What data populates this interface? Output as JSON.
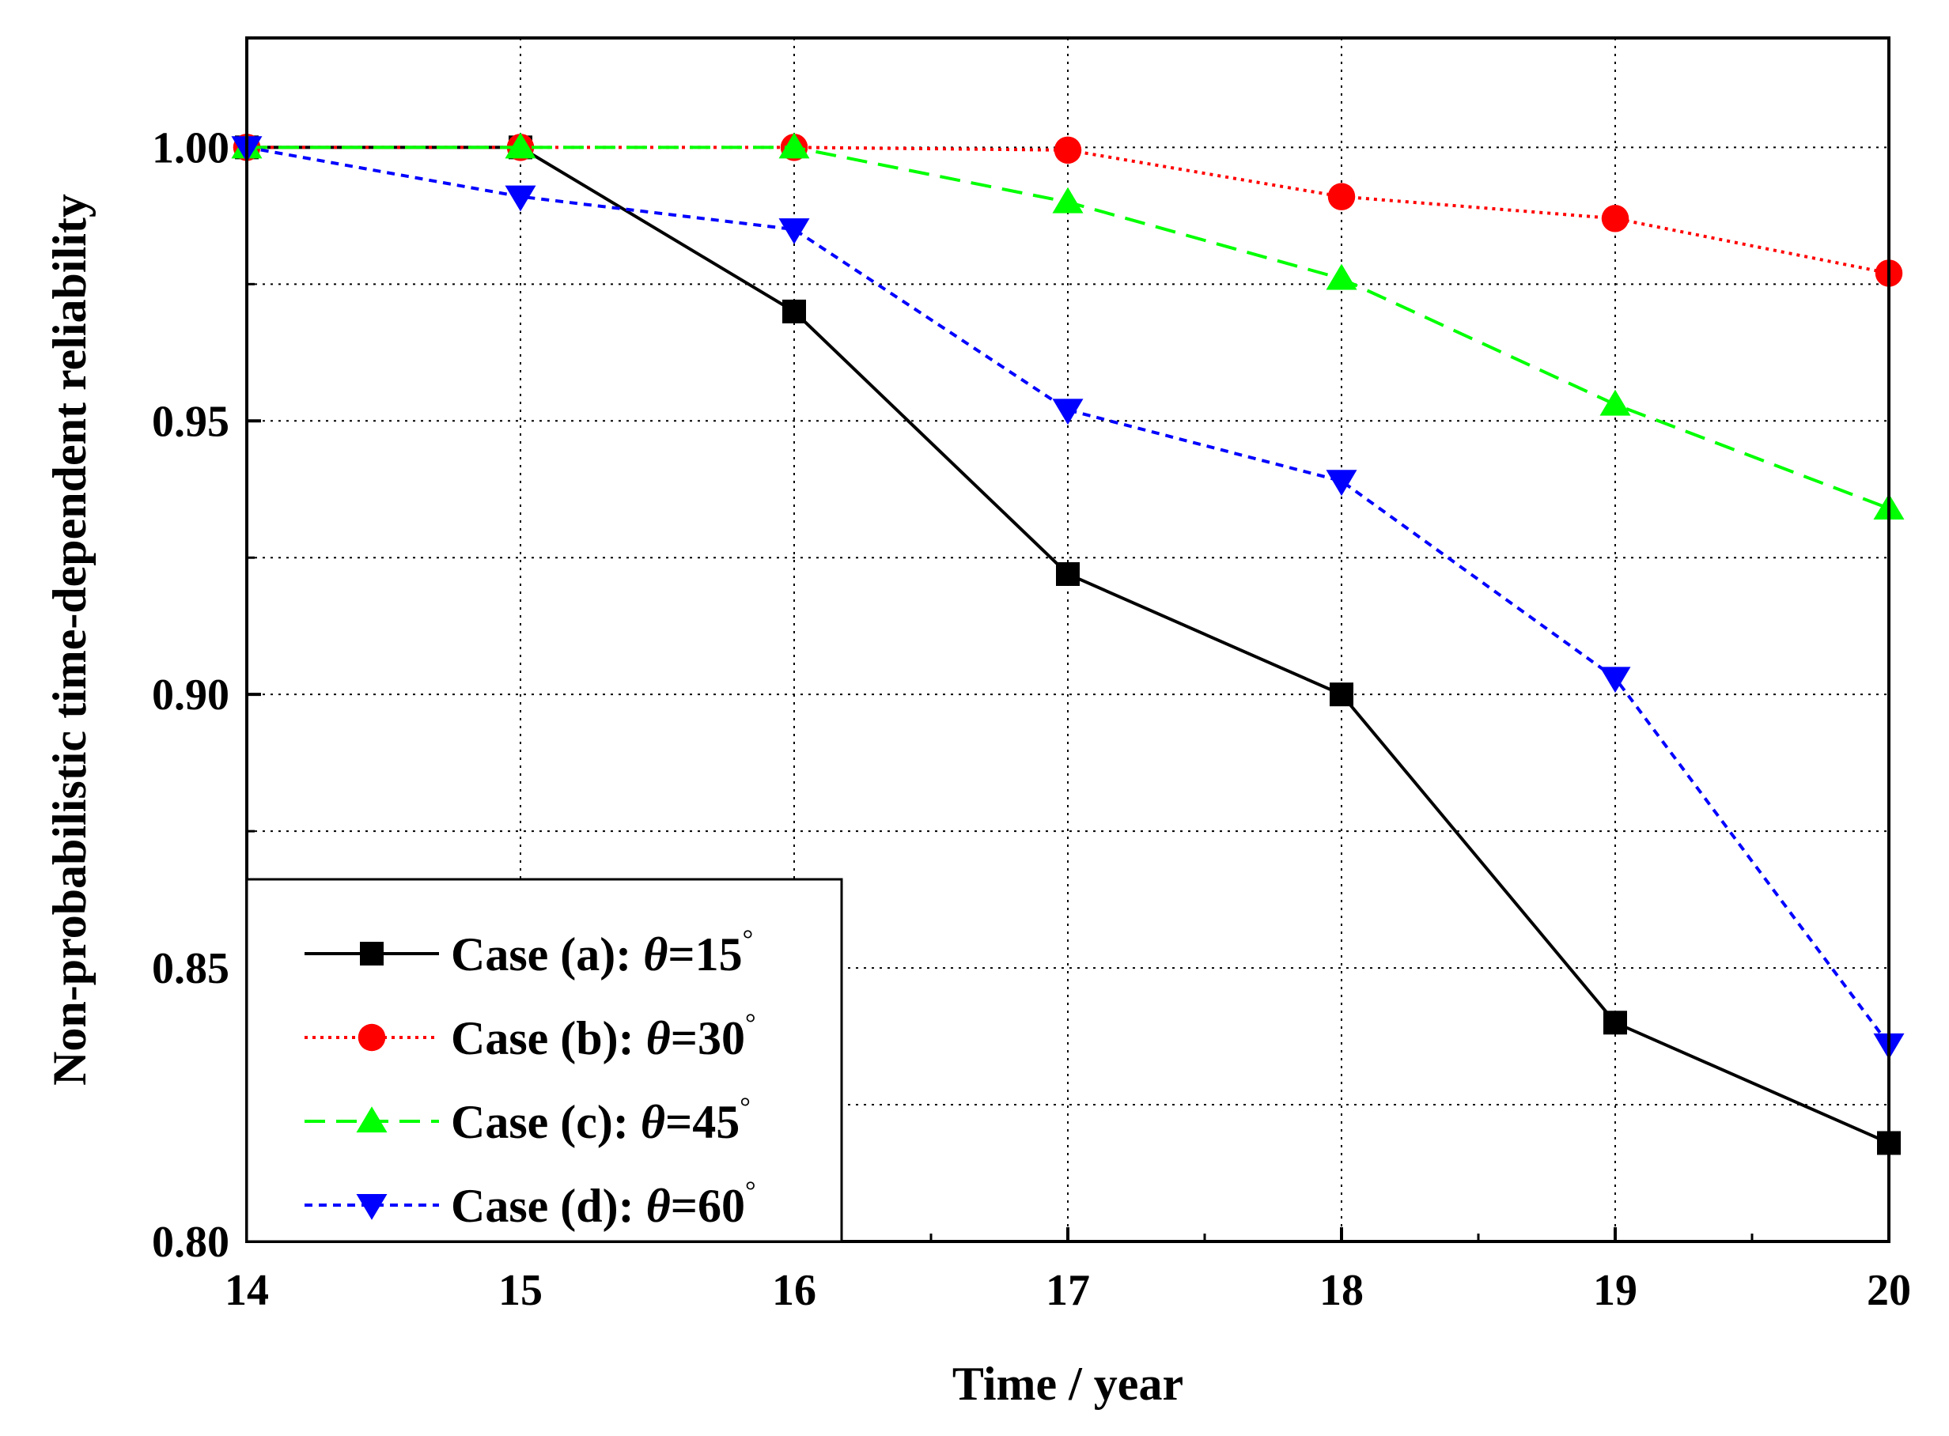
{
  "chart_data": {
    "type": "line",
    "title": "",
    "xlabel": "Time / year",
    "ylabel": "Non-probabilistic time-dependent reliability",
    "xlim": [
      14,
      20
    ],
    "ylim": [
      0.8,
      1.02
    ],
    "grid": true,
    "legend_position": "bottom-left",
    "x": [
      14,
      15,
      16,
      17,
      18,
      19,
      20
    ],
    "xticks": [
      14,
      15,
      16,
      17,
      18,
      19,
      20
    ],
    "xtick_labels": [
      "14",
      "15",
      "16",
      "17",
      "18",
      "19",
      "20"
    ],
    "yticks": [
      0.8,
      0.85,
      0.9,
      0.95,
      1.0
    ],
    "ytick_labels": [
      "0.80",
      "0.85",
      "0.90",
      "0.95",
      "1.00"
    ],
    "series": [
      {
        "name": "Case (a): θ=15°",
        "legend_prefix": "Case (a): ",
        "legend_symbol": "θ",
        "legend_value": "=15",
        "legend_degree": "°",
        "color": "#000000",
        "line_style": "solid",
        "marker": "square",
        "values": [
          1.0,
          1.0,
          0.97,
          0.922,
          0.9,
          0.84,
          0.818
        ]
      },
      {
        "name": "Case (b): θ=30°",
        "legend_prefix": "Case (b): ",
        "legend_symbol": "θ",
        "legend_value": "=30",
        "legend_degree": "°",
        "color": "#ff0000",
        "line_style": "dotted",
        "marker": "circle",
        "values": [
          1.0,
          1.0,
          1.0,
          0.9995,
          0.991,
          0.987,
          0.977
        ]
      },
      {
        "name": "Case (c): θ=45°",
        "legend_prefix": "Case (c): ",
        "legend_symbol": "θ",
        "legend_value": "=45",
        "legend_degree": "°",
        "color": "#00ff00",
        "line_style": "dashed",
        "marker": "triangle-up",
        "values": [
          1.0,
          1.0,
          1.0,
          0.99,
          0.976,
          0.953,
          0.934
        ]
      },
      {
        "name": "Case (d): θ=60°",
        "legend_prefix": "Case (d): ",
        "legend_symbol": "θ",
        "legend_value": "=60",
        "legend_degree": "°",
        "color": "#0000ff",
        "line_style": "short-dash",
        "marker": "triangle-down",
        "values": [
          1.0,
          0.991,
          0.985,
          0.952,
          0.939,
          0.903,
          0.836
        ]
      }
    ]
  }
}
